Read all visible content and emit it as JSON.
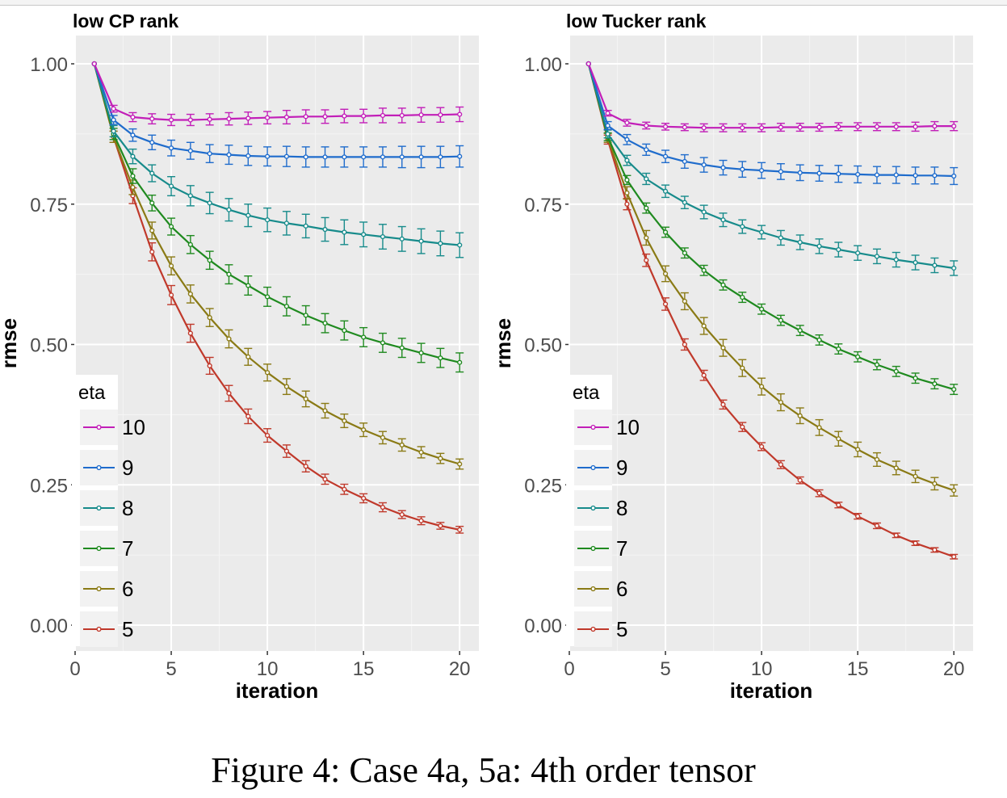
{
  "caption": "Figure 4: Case 4a, 5a: 4th order tensor",
  "colors": {
    "10": "#c21fb8",
    "9": "#1f6ccc",
    "8": "#178b8b",
    "7": "#1f8a1f",
    "6": "#8a7a15",
    "5": "#c0392b"
  },
  "chart_data": [
    {
      "type": "line",
      "title": "low CP rank",
      "xlabel": "iteration",
      "ylabel": "rmse",
      "xlim": [
        0,
        21
      ],
      "ylim": [
        0,
        1
      ],
      "xticks": [
        0,
        5,
        10,
        15,
        20
      ],
      "yticks": [
        "0.00",
        "0.25",
        "0.50",
        "0.75",
        "1.00"
      ],
      "grid": true,
      "legend": {
        "title": "eta",
        "position": "bottom-left",
        "entries": [
          "10",
          "9",
          "8",
          "7",
          "6",
          "5"
        ]
      },
      "x": [
        1,
        2,
        3,
        4,
        5,
        6,
        7,
        8,
        9,
        10,
        11,
        12,
        13,
        14,
        15,
        16,
        17,
        18,
        19,
        20
      ],
      "series": [
        {
          "name": "10",
          "values": [
            1.0,
            0.92,
            0.905,
            0.902,
            0.9,
            0.9,
            0.901,
            0.902,
            0.903,
            0.904,
            0.905,
            0.906,
            0.906,
            0.907,
            0.907,
            0.908,
            0.908,
            0.909,
            0.909,
            0.91
          ],
          "err": [
            0,
            0.006,
            0.008,
            0.009,
            0.01,
            0.01,
            0.01,
            0.011,
            0.011,
            0.011,
            0.012,
            0.012,
            0.012,
            0.012,
            0.012,
            0.013,
            0.013,
            0.013,
            0.013,
            0.013
          ]
        },
        {
          "name": "9",
          "values": [
            1.0,
            0.9,
            0.873,
            0.86,
            0.85,
            0.845,
            0.84,
            0.838,
            0.836,
            0.835,
            0.835,
            0.834,
            0.834,
            0.834,
            0.834,
            0.834,
            0.834,
            0.834,
            0.834,
            0.835
          ],
          "err": [
            0,
            0.008,
            0.011,
            0.013,
            0.014,
            0.015,
            0.016,
            0.017,
            0.017,
            0.017,
            0.018,
            0.018,
            0.018,
            0.018,
            0.018,
            0.018,
            0.019,
            0.019,
            0.019,
            0.019
          ]
        },
        {
          "name": "8",
          "values": [
            1.0,
            0.88,
            0.835,
            0.805,
            0.782,
            0.765,
            0.752,
            0.74,
            0.73,
            0.722,
            0.716,
            0.711,
            0.705,
            0.7,
            0.696,
            0.692,
            0.688,
            0.684,
            0.68,
            0.677
          ],
          "err": [
            0,
            0.01,
            0.013,
            0.015,
            0.017,
            0.018,
            0.019,
            0.02,
            0.02,
            0.021,
            0.021,
            0.021,
            0.021,
            0.022,
            0.022,
            0.022,
            0.022,
            0.022,
            0.022,
            0.022
          ]
        },
        {
          "name": "7",
          "values": [
            1.0,
            0.875,
            0.8,
            0.752,
            0.71,
            0.678,
            0.65,
            0.625,
            0.605,
            0.585,
            0.568,
            0.552,
            0.538,
            0.525,
            0.513,
            0.503,
            0.494,
            0.485,
            0.476,
            0.468
          ],
          "err": [
            0,
            0.01,
            0.013,
            0.014,
            0.015,
            0.016,
            0.016,
            0.017,
            0.017,
            0.017,
            0.017,
            0.017,
            0.017,
            0.017,
            0.017,
            0.017,
            0.017,
            0.017,
            0.017,
            0.017
          ]
        },
        {
          "name": "6",
          "values": [
            1.0,
            0.87,
            0.78,
            0.703,
            0.64,
            0.59,
            0.548,
            0.51,
            0.478,
            0.45,
            0.425,
            0.403,
            0.382,
            0.364,
            0.348,
            0.334,
            0.321,
            0.308,
            0.297,
            0.287
          ],
          "err": [
            0,
            0.01,
            0.013,
            0.015,
            0.016,
            0.016,
            0.016,
            0.016,
            0.015,
            0.015,
            0.014,
            0.014,
            0.013,
            0.012,
            0.012,
            0.011,
            0.011,
            0.01,
            0.009,
            0.009
          ]
        },
        {
          "name": "5",
          "values": [
            1.0,
            0.87,
            0.765,
            0.665,
            0.588,
            0.52,
            0.462,
            0.413,
            0.372,
            0.338,
            0.31,
            0.283,
            0.26,
            0.242,
            0.226,
            0.21,
            0.197,
            0.186,
            0.177,
            0.17
          ],
          "err": [
            0,
            0.01,
            0.014,
            0.016,
            0.017,
            0.016,
            0.015,
            0.014,
            0.013,
            0.012,
            0.011,
            0.01,
            0.009,
            0.009,
            0.008,
            0.008,
            0.007,
            0.007,
            0.006,
            0.006
          ]
        }
      ]
    },
    {
      "type": "line",
      "title": "low Tucker rank",
      "xlabel": "iteration",
      "ylabel": "rmse",
      "xlim": [
        0,
        21
      ],
      "ylim": [
        0,
        1
      ],
      "xticks": [
        0,
        5,
        10,
        15,
        20
      ],
      "yticks": [
        "0.00",
        "0.25",
        "0.50",
        "0.75",
        "1.00"
      ],
      "grid": true,
      "legend": {
        "title": "eta",
        "position": "bottom-left",
        "entries": [
          "10",
          "9",
          "8",
          "7",
          "6",
          "5"
        ]
      },
      "x": [
        1,
        2,
        3,
        4,
        5,
        6,
        7,
        8,
        9,
        10,
        11,
        12,
        13,
        14,
        15,
        16,
        17,
        18,
        19,
        20
      ],
      "series": [
        {
          "name": "10",
          "values": [
            1.0,
            0.912,
            0.895,
            0.89,
            0.888,
            0.887,
            0.886,
            0.886,
            0.886,
            0.886,
            0.887,
            0.887,
            0.887,
            0.888,
            0.888,
            0.888,
            0.888,
            0.888,
            0.889,
            0.889
          ],
          "err": [
            0,
            0.005,
            0.006,
            0.006,
            0.006,
            0.006,
            0.007,
            0.007,
            0.007,
            0.007,
            0.007,
            0.007,
            0.007,
            0.007,
            0.007,
            0.007,
            0.007,
            0.008,
            0.008,
            0.008
          ]
        },
        {
          "name": "9",
          "values": [
            1.0,
            0.89,
            0.865,
            0.847,
            0.835,
            0.826,
            0.82,
            0.815,
            0.812,
            0.81,
            0.808,
            0.806,
            0.805,
            0.804,
            0.803,
            0.802,
            0.802,
            0.801,
            0.801,
            0.8
          ],
          "err": [
            0,
            0.007,
            0.009,
            0.01,
            0.011,
            0.012,
            0.013,
            0.013,
            0.014,
            0.014,
            0.014,
            0.014,
            0.014,
            0.015,
            0.015,
            0.015,
            0.015,
            0.015,
            0.015,
            0.015
          ]
        },
        {
          "name": "8",
          "values": [
            1.0,
            0.875,
            0.828,
            0.795,
            0.773,
            0.753,
            0.736,
            0.722,
            0.71,
            0.7,
            0.69,
            0.682,
            0.675,
            0.669,
            0.663,
            0.657,
            0.651,
            0.646,
            0.641,
            0.636
          ],
          "err": [
            0,
            0.007,
            0.009,
            0.01,
            0.011,
            0.011,
            0.012,
            0.012,
            0.012,
            0.012,
            0.013,
            0.013,
            0.013,
            0.013,
            0.013,
            0.013,
            0.013,
            0.013,
            0.013,
            0.013
          ]
        },
        {
          "name": "7",
          "values": [
            1.0,
            0.87,
            0.793,
            0.743,
            0.7,
            0.663,
            0.632,
            0.606,
            0.584,
            0.563,
            0.543,
            0.525,
            0.508,
            0.492,
            0.478,
            0.464,
            0.452,
            0.44,
            0.43,
            0.42
          ],
          "err": [
            0,
            0.007,
            0.008,
            0.009,
            0.009,
            0.009,
            0.009,
            0.009,
            0.009,
            0.009,
            0.009,
            0.009,
            0.009,
            0.009,
            0.009,
            0.009,
            0.009,
            0.009,
            0.009,
            0.009
          ]
        },
        {
          "name": "6",
          "values": [
            1.0,
            0.868,
            0.77,
            0.69,
            0.626,
            0.577,
            0.533,
            0.494,
            0.458,
            0.425,
            0.397,
            0.373,
            0.352,
            0.332,
            0.313,
            0.295,
            0.28,
            0.265,
            0.252,
            0.24
          ],
          "err": [
            0,
            0.008,
            0.011,
            0.013,
            0.014,
            0.015,
            0.015,
            0.015,
            0.015,
            0.015,
            0.015,
            0.014,
            0.014,
            0.013,
            0.013,
            0.012,
            0.012,
            0.011,
            0.011,
            0.01
          ]
        },
        {
          "name": "5",
          "values": [
            1.0,
            0.865,
            0.75,
            0.65,
            0.572,
            0.5,
            0.445,
            0.393,
            0.353,
            0.318,
            0.286,
            0.258,
            0.235,
            0.214,
            0.194,
            0.177,
            0.16,
            0.146,
            0.134,
            0.122
          ],
          "err": [
            0,
            0.008,
            0.01,
            0.011,
            0.011,
            0.01,
            0.009,
            0.008,
            0.008,
            0.007,
            0.007,
            0.006,
            0.006,
            0.005,
            0.005,
            0.005,
            0.004,
            0.004,
            0.004,
            0.004
          ]
        }
      ]
    }
  ]
}
